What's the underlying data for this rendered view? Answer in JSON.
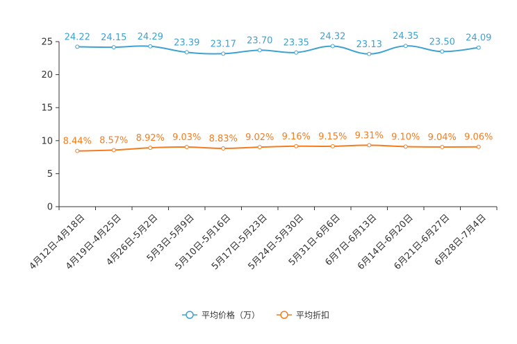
{
  "chart_data": {
    "type": "line",
    "categories": [
      "4月12日-4月18日",
      "4月19日-4月25日",
      "4月26日-5月2日",
      "5月3日-5月9日",
      "5月10日-5月16日",
      "5月17日-5月23日",
      "5月24日-5月30日",
      "5月31日-6月6日",
      "6月7日-6月13日",
      "6月14日-6月20日",
      "6月21日-6月27日",
      "6月28日-7月4日"
    ],
    "series": [
      {
        "name": "平均价格（万）",
        "color": "#3da1d1",
        "values": [
          24.22,
          24.15,
          24.29,
          23.39,
          23.17,
          23.7,
          23.35,
          24.32,
          23.13,
          24.35,
          23.5,
          24.09
        ],
        "labels": [
          "24.22",
          "24.15",
          "24.29",
          "23.39",
          "23.17",
          "23.70",
          "23.35",
          "24.32",
          "23.13",
          "24.35",
          "23.50",
          "24.09"
        ]
      },
      {
        "name": "平均折扣",
        "color": "#f47c20",
        "values": [
          8.44,
          8.57,
          8.92,
          9.03,
          8.83,
          9.02,
          9.16,
          9.15,
          9.31,
          9.1,
          9.04,
          9.06
        ],
        "labels": [
          "8.44%",
          "8.57%",
          "8.92%",
          "9.03%",
          "8.83%",
          "9.02%",
          "9.16%",
          "9.15%",
          "9.31%",
          "9.10%",
          "9.04%",
          "9.06%"
        ]
      }
    ],
    "yticks": [
      "0",
      "5",
      "10",
      "15",
      "20",
      "25"
    ],
    "ylim": [
      0,
      25
    ],
    "title": "",
    "xlabel": "",
    "ylabel": "",
    "legend_position": "bottom-center"
  }
}
